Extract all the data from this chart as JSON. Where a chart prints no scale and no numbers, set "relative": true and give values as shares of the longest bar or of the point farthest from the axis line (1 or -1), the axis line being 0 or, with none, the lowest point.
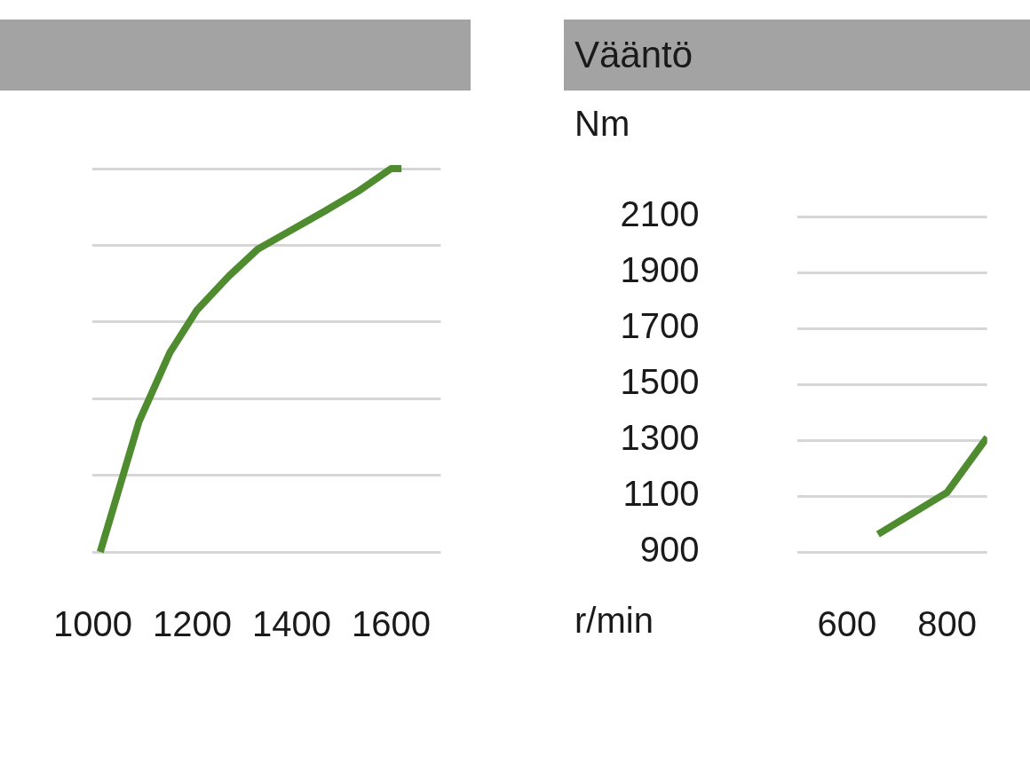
{
  "chart_data": [
    {
      "type": "line",
      "relative": true,
      "x": [
        1015,
        1054,
        1093,
        1155,
        1209,
        1274,
        1332,
        1400,
        1468,
        1533,
        1600,
        1621
      ],
      "xlim": [
        1000,
        1700
      ],
      "xticks": [
        1000,
        1200,
        1400,
        1600
      ],
      "series": [
        {
          "color": "#4e8c2f",
          "values": [
            0,
            0.17,
            0.34,
            0.52,
            0.63,
            0.72,
            0.79,
            0.84,
            0.89,
            0.94,
            1,
            1
          ]
        }
      ],
      "grid": "y",
      "tick_labels": "x",
      "legend": false,
      "marker": "none"
    },
    {
      "type": "line",
      "title": "Vääntö",
      "ylabel": "Nm",
      "xlabel": "r/min",
      "x": [
        662,
        800,
        880
      ],
      "xlim": [
        500,
        880
      ],
      "xticks": [
        600,
        800
      ],
      "ylim": [
        900,
        2100
      ],
      "yticks": [
        900,
        1100,
        1300,
        1500,
        1700,
        1900,
        2100
      ],
      "series": [
        {
          "color": "#4e8c2f",
          "values": [
            963,
            1113,
            1310
          ]
        }
      ],
      "grid": "y",
      "legend": false,
      "marker": "none"
    }
  ]
}
